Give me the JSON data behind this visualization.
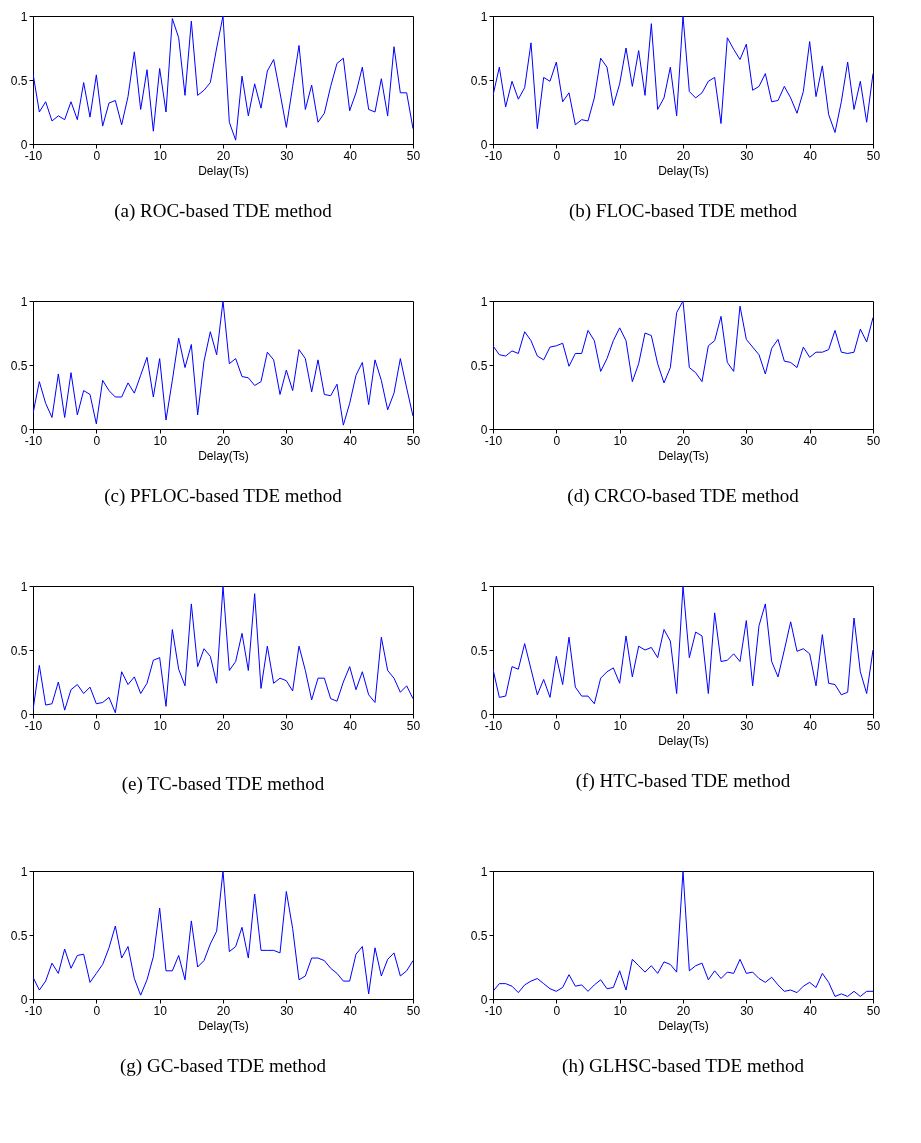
{
  "chart_data": [
    {
      "type": "line",
      "title": "(a) ROC-based TDE method",
      "xlabel": "Delay(Ts)",
      "xlim": [
        -10,
        50
      ],
      "xticks": [
        -10,
        0,
        10,
        20,
        30,
        40,
        50
      ],
      "ylim": [
        0,
        1
      ],
      "yticks": [
        0,
        0.5,
        1
      ],
      "x": [
        -10,
        -9,
        -8,
        -7,
        -6,
        -5,
        -4,
        -3,
        -2,
        -1,
        0,
        1,
        2,
        3,
        4,
        5,
        6,
        7,
        8,
        9,
        10,
        11,
        12,
        13,
        14,
        15,
        16,
        17,
        18,
        19,
        20,
        21,
        22,
        23,
        24,
        25,
        26,
        27,
        28,
        29,
        30,
        31,
        32,
        33,
        34,
        35,
        36,
        37,
        38,
        39,
        40,
        41,
        42,
        43,
        44,
        45,
        46,
        47,
        48,
        49,
        50
      ],
      "series": [
        {
          "color": "#0000ff",
          "values": [
            0.55,
            0.25,
            0.33,
            0.18,
            0.22,
            0.19,
            0.33,
            0.19,
            0.48,
            0.21,
            0.54,
            0.14,
            0.32,
            0.34,
            0.15,
            0.37,
            0.72,
            0.27,
            0.58,
            0.1,
            0.59,
            0.25,
            0.98,
            0.83,
            0.38,
            0.96,
            0.38,
            0.42,
            0.48,
            0.75,
            1.0,
            0.17,
            0.03,
            0.53,
            0.22,
            0.47,
            0.28,
            0.57,
            0.66,
            0.4,
            0.13,
            0.45,
            0.77,
            0.27,
            0.46,
            0.17,
            0.24,
            0.45,
            0.63,
            0.67,
            0.26,
            0.4,
            0.6,
            0.27,
            0.25,
            0.51,
            0.22,
            0.76,
            0.4,
            0.4,
            0.12
          ]
        }
      ]
    },
    {
      "type": "line",
      "title": "(b) FLOC-based TDE method",
      "xlabel": "Delay(Ts)",
      "xlim": [
        -10,
        50
      ],
      "xticks": [
        -10,
        0,
        10,
        20,
        30,
        40,
        50
      ],
      "ylim": [
        0,
        1
      ],
      "yticks": [
        0,
        0.5,
        1
      ],
      "x": [
        -10,
        -9,
        -8,
        -7,
        -6,
        -5,
        -4,
        -3,
        -2,
        -1,
        0,
        1,
        2,
        3,
        4,
        5,
        6,
        7,
        8,
        9,
        10,
        11,
        12,
        13,
        14,
        15,
        16,
        17,
        18,
        19,
        20,
        21,
        22,
        23,
        24,
        25,
        26,
        27,
        28,
        29,
        30,
        31,
        32,
        33,
        34,
        35,
        36,
        37,
        38,
        39,
        40,
        41,
        42,
        43,
        44,
        45,
        46,
        47,
        48,
        49,
        50
      ],
      "series": [
        {
          "color": "#0000ff",
          "values": [
            0.38,
            0.6,
            0.29,
            0.49,
            0.35,
            0.44,
            0.79,
            0.12,
            0.52,
            0.49,
            0.64,
            0.33,
            0.4,
            0.15,
            0.19,
            0.18,
            0.36,
            0.67,
            0.6,
            0.3,
            0.47,
            0.75,
            0.45,
            0.73,
            0.38,
            0.94,
            0.27,
            0.36,
            0.6,
            0.22,
            1.0,
            0.41,
            0.36,
            0.4,
            0.49,
            0.52,
            0.16,
            0.83,
            0.74,
            0.66,
            0.78,
            0.42,
            0.45,
            0.55,
            0.33,
            0.34,
            0.45,
            0.36,
            0.24,
            0.41,
            0.8,
            0.37,
            0.61,
            0.23,
            0.09,
            0.33,
            0.64,
            0.27,
            0.49,
            0.17,
            0.55
          ]
        }
      ]
    },
    {
      "type": "line",
      "title": "(c) PFLOC-based TDE method",
      "xlabel": "Delay(Ts)",
      "xlim": [
        -10,
        50
      ],
      "xticks": [
        -10,
        0,
        10,
        20,
        30,
        40,
        50
      ],
      "ylim": [
        0,
        1
      ],
      "yticks": [
        0,
        0.5,
        1
      ],
      "x": [
        -10,
        -9,
        -8,
        -7,
        -6,
        -5,
        -4,
        -3,
        -2,
        -1,
        0,
        1,
        2,
        3,
        4,
        5,
        6,
        7,
        8,
        9,
        10,
        11,
        12,
        13,
        14,
        15,
        16,
        17,
        18,
        19,
        20,
        21,
        22,
        23,
        24,
        25,
        26,
        27,
        28,
        29,
        30,
        31,
        32,
        33,
        34,
        35,
        36,
        37,
        38,
        39,
        40,
        41,
        42,
        43,
        44,
        45,
        46,
        47,
        48,
        49,
        50
      ],
      "series": [
        {
          "color": "#0000ff",
          "values": [
            0.12,
            0.37,
            0.2,
            0.09,
            0.43,
            0.09,
            0.44,
            0.11,
            0.3,
            0.27,
            0.04,
            0.38,
            0.3,
            0.25,
            0.25,
            0.36,
            0.28,
            0.42,
            0.56,
            0.25,
            0.55,
            0.07,
            0.38,
            0.71,
            0.48,
            0.66,
            0.11,
            0.53,
            0.76,
            0.58,
            1.0,
            0.51,
            0.55,
            0.41,
            0.4,
            0.34,
            0.37,
            0.6,
            0.54,
            0.27,
            0.46,
            0.3,
            0.62,
            0.55,
            0.29,
            0.54,
            0.27,
            0.26,
            0.35,
            0.03,
            0.2,
            0.42,
            0.52,
            0.19,
            0.54,
            0.38,
            0.15,
            0.28,
            0.55,
            0.32,
            0.1
          ]
        }
      ]
    },
    {
      "type": "line",
      "title": "(d) CRCO-based TDE method",
      "xlabel": "Delay(Ts)",
      "xlim": [
        -10,
        50
      ],
      "xticks": [
        -10,
        0,
        10,
        20,
        30,
        40,
        50
      ],
      "ylim": [
        0,
        1
      ],
      "yticks": [
        0,
        0.5,
        1
      ],
      "x": [
        -10,
        -9,
        -8,
        -7,
        -6,
        -5,
        -4,
        -3,
        -2,
        -1,
        0,
        1,
        2,
        3,
        4,
        5,
        6,
        7,
        8,
        9,
        10,
        11,
        12,
        13,
        14,
        15,
        16,
        17,
        18,
        19,
        20,
        21,
        22,
        23,
        24,
        25,
        26,
        27,
        28,
        29,
        30,
        31,
        32,
        33,
        34,
        35,
        36,
        37,
        38,
        39,
        40,
        41,
        42,
        43,
        44,
        45,
        46,
        47,
        48,
        49,
        50
      ],
      "series": [
        {
          "color": "#0000ff",
          "values": [
            0.65,
            0.58,
            0.57,
            0.61,
            0.59,
            0.76,
            0.69,
            0.57,
            0.54,
            0.64,
            0.65,
            0.67,
            0.49,
            0.59,
            0.59,
            0.77,
            0.69,
            0.45,
            0.55,
            0.69,
            0.79,
            0.69,
            0.37,
            0.51,
            0.75,
            0.73,
            0.51,
            0.36,
            0.48,
            0.91,
            1.0,
            0.48,
            0.44,
            0.37,
            0.65,
            0.69,
            0.88,
            0.52,
            0.45,
            0.96,
            0.7,
            0.64,
            0.58,
            0.43,
            0.63,
            0.7,
            0.53,
            0.52,
            0.48,
            0.64,
            0.56,
            0.6,
            0.6,
            0.62,
            0.77,
            0.6,
            0.59,
            0.6,
            0.78,
            0.68,
            0.87
          ]
        }
      ]
    },
    {
      "type": "line",
      "title": "(e) TC-based TDE method",
      "xlim": [
        -10,
        50
      ],
      "xticks": [
        -10,
        0,
        10,
        20,
        30,
        40,
        50
      ],
      "ylim": [
        0,
        1
      ],
      "yticks": [
        0,
        0.5,
        1
      ],
      "x": [
        -10,
        -9,
        -8,
        -7,
        -6,
        -5,
        -4,
        -3,
        -2,
        -1,
        0,
        1,
        2,
        3,
        4,
        5,
        6,
        7,
        8,
        9,
        10,
        11,
        12,
        13,
        14,
        15,
        16,
        17,
        18,
        19,
        20,
        21,
        22,
        23,
        24,
        25,
        26,
        27,
        28,
        29,
        30,
        31,
        32,
        33,
        34,
        35,
        36,
        37,
        38,
        39,
        40,
        41,
        42,
        43,
        44,
        45,
        46,
        47,
        48,
        49,
        50
      ],
      "series": [
        {
          "color": "#0000ff",
          "values": [
            0.03,
            0.38,
            0.07,
            0.08,
            0.25,
            0.03,
            0.19,
            0.23,
            0.16,
            0.21,
            0.08,
            0.09,
            0.13,
            0.01,
            0.33,
            0.23,
            0.29,
            0.16,
            0.24,
            0.42,
            0.44,
            0.06,
            0.66,
            0.35,
            0.22,
            0.86,
            0.37,
            0.51,
            0.45,
            0.24,
            1.0,
            0.34,
            0.41,
            0.63,
            0.34,
            0.94,
            0.2,
            0.53,
            0.24,
            0.28,
            0.26,
            0.18,
            0.53,
            0.34,
            0.11,
            0.28,
            0.28,
            0.12,
            0.1,
            0.25,
            0.37,
            0.19,
            0.33,
            0.15,
            0.09,
            0.6,
            0.34,
            0.28,
            0.17,
            0.22,
            0.12
          ]
        }
      ]
    },
    {
      "type": "line",
      "title": "(f) HTC-based TDE method",
      "xlabel": "Delay(Ts)",
      "xlim": [
        -10,
        50
      ],
      "xticks": [
        -10,
        0,
        10,
        20,
        30,
        40,
        50
      ],
      "ylim": [
        0,
        1
      ],
      "yticks": [
        0,
        0.5,
        1
      ],
      "x": [
        -10,
        -9,
        -8,
        -7,
        -6,
        -5,
        -4,
        -3,
        -2,
        -1,
        0,
        1,
        2,
        3,
        4,
        5,
        6,
        7,
        8,
        9,
        10,
        11,
        12,
        13,
        14,
        15,
        16,
        17,
        18,
        19,
        20,
        21,
        22,
        23,
        24,
        25,
        26,
        27,
        28,
        29,
        30,
        31,
        32,
        33,
        34,
        35,
        36,
        37,
        38,
        39,
        40,
        41,
        42,
        43,
        44,
        45,
        46,
        47,
        48,
        49,
        50
      ],
      "series": [
        {
          "color": "#0000ff",
          "values": [
            0.35,
            0.13,
            0.14,
            0.37,
            0.35,
            0.55,
            0.35,
            0.15,
            0.27,
            0.13,
            0.45,
            0.23,
            0.6,
            0.21,
            0.14,
            0.14,
            0.08,
            0.28,
            0.33,
            0.36,
            0.24,
            0.61,
            0.29,
            0.53,
            0.5,
            0.52,
            0.44,
            0.66,
            0.57,
            0.16,
            1.0,
            0.44,
            0.64,
            0.61,
            0.16,
            0.79,
            0.41,
            0.42,
            0.47,
            0.41,
            0.73,
            0.22,
            0.69,
            0.86,
            0.41,
            0.29,
            0.5,
            0.72,
            0.49,
            0.51,
            0.47,
            0.22,
            0.62,
            0.24,
            0.23,
            0.15,
            0.17,
            0.75,
            0.33,
            0.16,
            0.5
          ]
        }
      ]
    },
    {
      "type": "line",
      "title": "(g) GC-based TDE method",
      "xlabel": "Delay(Ts)",
      "xlim": [
        -10,
        50
      ],
      "xticks": [
        -10,
        0,
        10,
        20,
        30,
        40,
        50
      ],
      "ylim": [
        0,
        1
      ],
      "yticks": [
        0,
        0.5,
        1
      ],
      "x": [
        -10,
        -9,
        -8,
        -7,
        -6,
        -5,
        -4,
        -3,
        -2,
        -1,
        0,
        1,
        2,
        3,
        4,
        5,
        6,
        7,
        8,
        9,
        10,
        11,
        12,
        13,
        14,
        15,
        16,
        17,
        18,
        19,
        20,
        21,
        22,
        23,
        24,
        25,
        26,
        27,
        28,
        29,
        30,
        31,
        32,
        33,
        34,
        35,
        36,
        37,
        38,
        39,
        40,
        41,
        42,
        43,
        44,
        45,
        46,
        47,
        48,
        49,
        50
      ],
      "series": [
        {
          "color": "#0000ff",
          "values": [
            0.17,
            0.07,
            0.14,
            0.28,
            0.2,
            0.39,
            0.24,
            0.34,
            0.35,
            0.13,
            0.2,
            0.27,
            0.4,
            0.57,
            0.32,
            0.41,
            0.16,
            0.03,
            0.15,
            0.33,
            0.71,
            0.22,
            0.22,
            0.34,
            0.15,
            0.61,
            0.25,
            0.3,
            0.43,
            0.53,
            1.0,
            0.37,
            0.41,
            0.56,
            0.32,
            0.82,
            0.38,
            0.38,
            0.38,
            0.36,
            0.84,
            0.55,
            0.15,
            0.18,
            0.32,
            0.32,
            0.3,
            0.24,
            0.2,
            0.14,
            0.14,
            0.35,
            0.41,
            0.04,
            0.4,
            0.18,
            0.31,
            0.36,
            0.18,
            0.22,
            0.3
          ]
        }
      ]
    },
    {
      "type": "line",
      "title": "(h) GLHSC-based TDE method",
      "xlabel": "Delay(Ts)",
      "xlim": [
        -10,
        50
      ],
      "xticks": [
        -10,
        0,
        10,
        20,
        30,
        40,
        50
      ],
      "ylim": [
        0,
        1
      ],
      "yticks": [
        0,
        0.5,
        1
      ],
      "x": [
        -10,
        -9,
        -8,
        -7,
        -6,
        -5,
        -4,
        -3,
        -2,
        -1,
        0,
        1,
        2,
        3,
        4,
        5,
        6,
        7,
        8,
        9,
        10,
        11,
        12,
        13,
        14,
        15,
        16,
        17,
        18,
        19,
        20,
        21,
        22,
        23,
        24,
        25,
        26,
        27,
        28,
        29,
        30,
        31,
        32,
        33,
        34,
        35,
        36,
        37,
        38,
        39,
        40,
        41,
        42,
        43,
        44,
        45,
        46,
        47,
        48,
        49,
        50
      ],
      "series": [
        {
          "color": "#0000ff",
          "values": [
            0.06,
            0.12,
            0.12,
            0.1,
            0.05,
            0.11,
            0.14,
            0.16,
            0.12,
            0.08,
            0.06,
            0.09,
            0.19,
            0.1,
            0.11,
            0.06,
            0.11,
            0.15,
            0.08,
            0.09,
            0.22,
            0.07,
            0.31,
            0.26,
            0.21,
            0.26,
            0.2,
            0.29,
            0.27,
            0.21,
            1.0,
            0.22,
            0.26,
            0.28,
            0.15,
            0.22,
            0.16,
            0.21,
            0.2,
            0.31,
            0.2,
            0.21,
            0.16,
            0.13,
            0.17,
            0.11,
            0.06,
            0.07,
            0.05,
            0.1,
            0.13,
            0.09,
            0.2,
            0.13,
            0.02,
            0.04,
            0.02,
            0.06,
            0.02,
            0.06,
            0.06
          ]
        }
      ]
    }
  ]
}
